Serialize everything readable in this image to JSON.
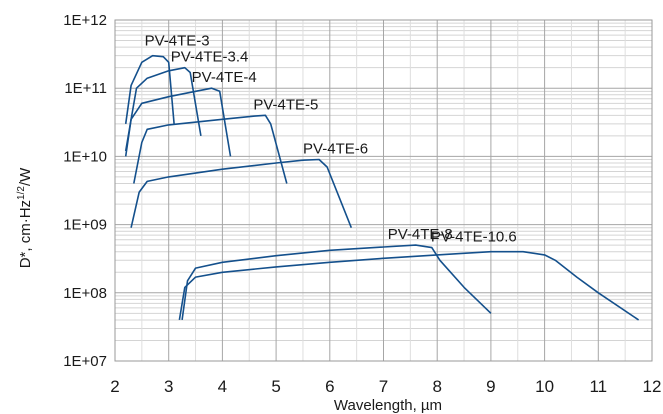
{
  "chart_data": {
    "type": "line",
    "title": "",
    "xlabel": "Wavelength, µm",
    "ylabel": "D*, cm·Hz¹ᐟ²/W",
    "ylabel_parts": {
      "main": "D*, cm·Hz",
      "sup": "1/2",
      "tail": "/W"
    },
    "x_scale": "linear",
    "y_scale": "log",
    "xlim": [
      2,
      12
    ],
    "ylim": [
      10000000,
      1000000000000
    ],
    "grid": true,
    "legend": "none",
    "line_color": "#14508c",
    "x_ticks": [
      "2",
      "3",
      "4",
      "5",
      "6",
      "7",
      "8",
      "9",
      "10",
      "11",
      "12"
    ],
    "y_ticks": [
      "1E+07",
      "1E+08",
      "1E+09",
      "1E+10",
      "1E+11",
      "1E+12"
    ],
    "series": [
      {
        "name": "PV-4TE-3",
        "points": [
          [
            2.2,
            30000000000.0
          ],
          [
            2.3,
            110000000000.0
          ],
          [
            2.5,
            240000000000.0
          ],
          [
            2.7,
            300000000000.0
          ],
          [
            2.9,
            290000000000.0
          ],
          [
            3.0,
            240000000000.0
          ],
          [
            3.1,
            30000000000.0
          ]
        ]
      },
      {
        "name": "PV-4TE-3.4",
        "points": [
          [
            2.2,
            10000000000.0
          ],
          [
            2.3,
            35000000000.0
          ],
          [
            2.4,
            100000000000.0
          ],
          [
            2.6,
            140000000000.0
          ],
          [
            3.0,
            180000000000.0
          ],
          [
            3.3,
            200000000000.0
          ],
          [
            3.4,
            170000000000.0
          ],
          [
            3.6,
            20000000000.0
          ]
        ]
      },
      {
        "name": "PV-4TE-4",
        "points": [
          [
            2.2,
            12000000000.0
          ],
          [
            2.3,
            35000000000.0
          ],
          [
            2.5,
            60000000000.0
          ],
          [
            3.0,
            75000000000.0
          ],
          [
            3.5,
            90000000000.0
          ],
          [
            3.8,
            100000000000.0
          ],
          [
            3.95,
            90000000000.0
          ],
          [
            4.15,
            10000000000.0
          ]
        ]
      },
      {
        "name": "PV-4TE-5",
        "points": [
          [
            2.35,
            4000000000.0
          ],
          [
            2.5,
            16000000000.0
          ],
          [
            2.6,
            25000000000.0
          ],
          [
            3.0,
            29000000000.0
          ],
          [
            4.0,
            35000000000.0
          ],
          [
            4.6,
            39000000000.0
          ],
          [
            4.8,
            40000000000.0
          ],
          [
            4.9,
            30000000000.0
          ],
          [
            5.2,
            4000000000.0
          ]
        ]
      },
      {
        "name": "PV-4TE-6",
        "points": [
          [
            2.3,
            900000000.0
          ],
          [
            2.45,
            3000000000.0
          ],
          [
            2.6,
            4300000000.0
          ],
          [
            3.0,
            5000000000.0
          ],
          [
            4.0,
            6500000000.0
          ],
          [
            5.0,
            8000000000.0
          ],
          [
            5.5,
            8800000000.0
          ],
          [
            5.8,
            9000000000.0
          ],
          [
            5.95,
            7000000000.0
          ],
          [
            6.4,
            900000000.0
          ]
        ]
      },
      {
        "name": "PV-4TE-8",
        "points": [
          [
            3.25,
            40000000.0
          ],
          [
            3.35,
            150000000.0
          ],
          [
            3.5,
            230000000.0
          ],
          [
            4.0,
            280000000.0
          ],
          [
            5.0,
            350000000.0
          ],
          [
            6.0,
            420000000.0
          ],
          [
            7.0,
            470000000.0
          ],
          [
            7.6,
            500000000.0
          ],
          [
            7.9,
            460000000.0
          ],
          [
            8.05,
            300000000.0
          ],
          [
            8.5,
            120000000.0
          ],
          [
            9.0,
            50000000.0
          ]
        ]
      },
      {
        "name": "PV-4TE-10.6",
        "points": [
          [
            3.2,
            40000000.0
          ],
          [
            3.3,
            120000000.0
          ],
          [
            3.5,
            170000000.0
          ],
          [
            4.0,
            200000000.0
          ],
          [
            5.0,
            240000000.0
          ],
          [
            6.0,
            280000000.0
          ],
          [
            7.0,
            320000000.0
          ],
          [
            8.0,
            360000000.0
          ],
          [
            9.0,
            400000000.0
          ],
          [
            9.6,
            400000000.0
          ],
          [
            10.0,
            360000000.0
          ],
          [
            10.2,
            300000000.0
          ],
          [
            10.6,
            170000000.0
          ],
          [
            11.0,
            100000000.0
          ],
          [
            11.75,
            40000000.0
          ]
        ]
      }
    ]
  }
}
